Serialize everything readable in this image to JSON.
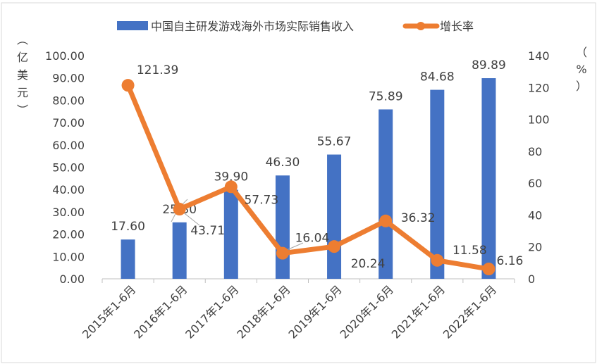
{
  "chart_data": {
    "type": "bar+line",
    "categories": [
      "2015年1-6月",
      "2016年1-6月",
      "2017年1-6月",
      "2018年1-6月",
      "2019年1-6月",
      "2020年1-6月",
      "2021年1-6月",
      "2022年1-6月"
    ],
    "series": [
      {
        "name": "中国自主研发游戏海外市场实际销售收入",
        "type": "bar",
        "axis": "left",
        "color": "#4472C4",
        "values": [
          17.6,
          25.3,
          39.9,
          46.3,
          55.67,
          75.89,
          84.68,
          89.89
        ],
        "labels": [
          "17.60",
          "25.30",
          "39.90",
          "46.30",
          "55.67",
          "75.89",
          "84.68",
          "89.89"
        ]
      },
      {
        "name": "增长率",
        "type": "line",
        "axis": "right",
        "color": "#ED7D31",
        "values": [
          121.39,
          43.71,
          57.73,
          16.04,
          20.24,
          36.32,
          11.58,
          6.16
        ],
        "labels": [
          "121.39",
          "43.71",
          "57.73",
          "16.04",
          "20.24",
          "36.32",
          "11.58",
          "6.16"
        ]
      }
    ],
    "y_left": {
      "label": "（亿美元）",
      "ylim": [
        0,
        100
      ],
      "ticks": [
        "0.00",
        "10.00",
        "20.00",
        "30.00",
        "40.00",
        "50.00",
        "60.00",
        "70.00",
        "80.00",
        "90.00",
        "100.00"
      ]
    },
    "y_right": {
      "label": "（%）",
      "ylim": [
        0,
        140
      ],
      "ticks": [
        "0",
        "20",
        "40",
        "60",
        "80",
        "100",
        "120",
        "140"
      ]
    },
    "legend_position": "top",
    "grid": false
  }
}
